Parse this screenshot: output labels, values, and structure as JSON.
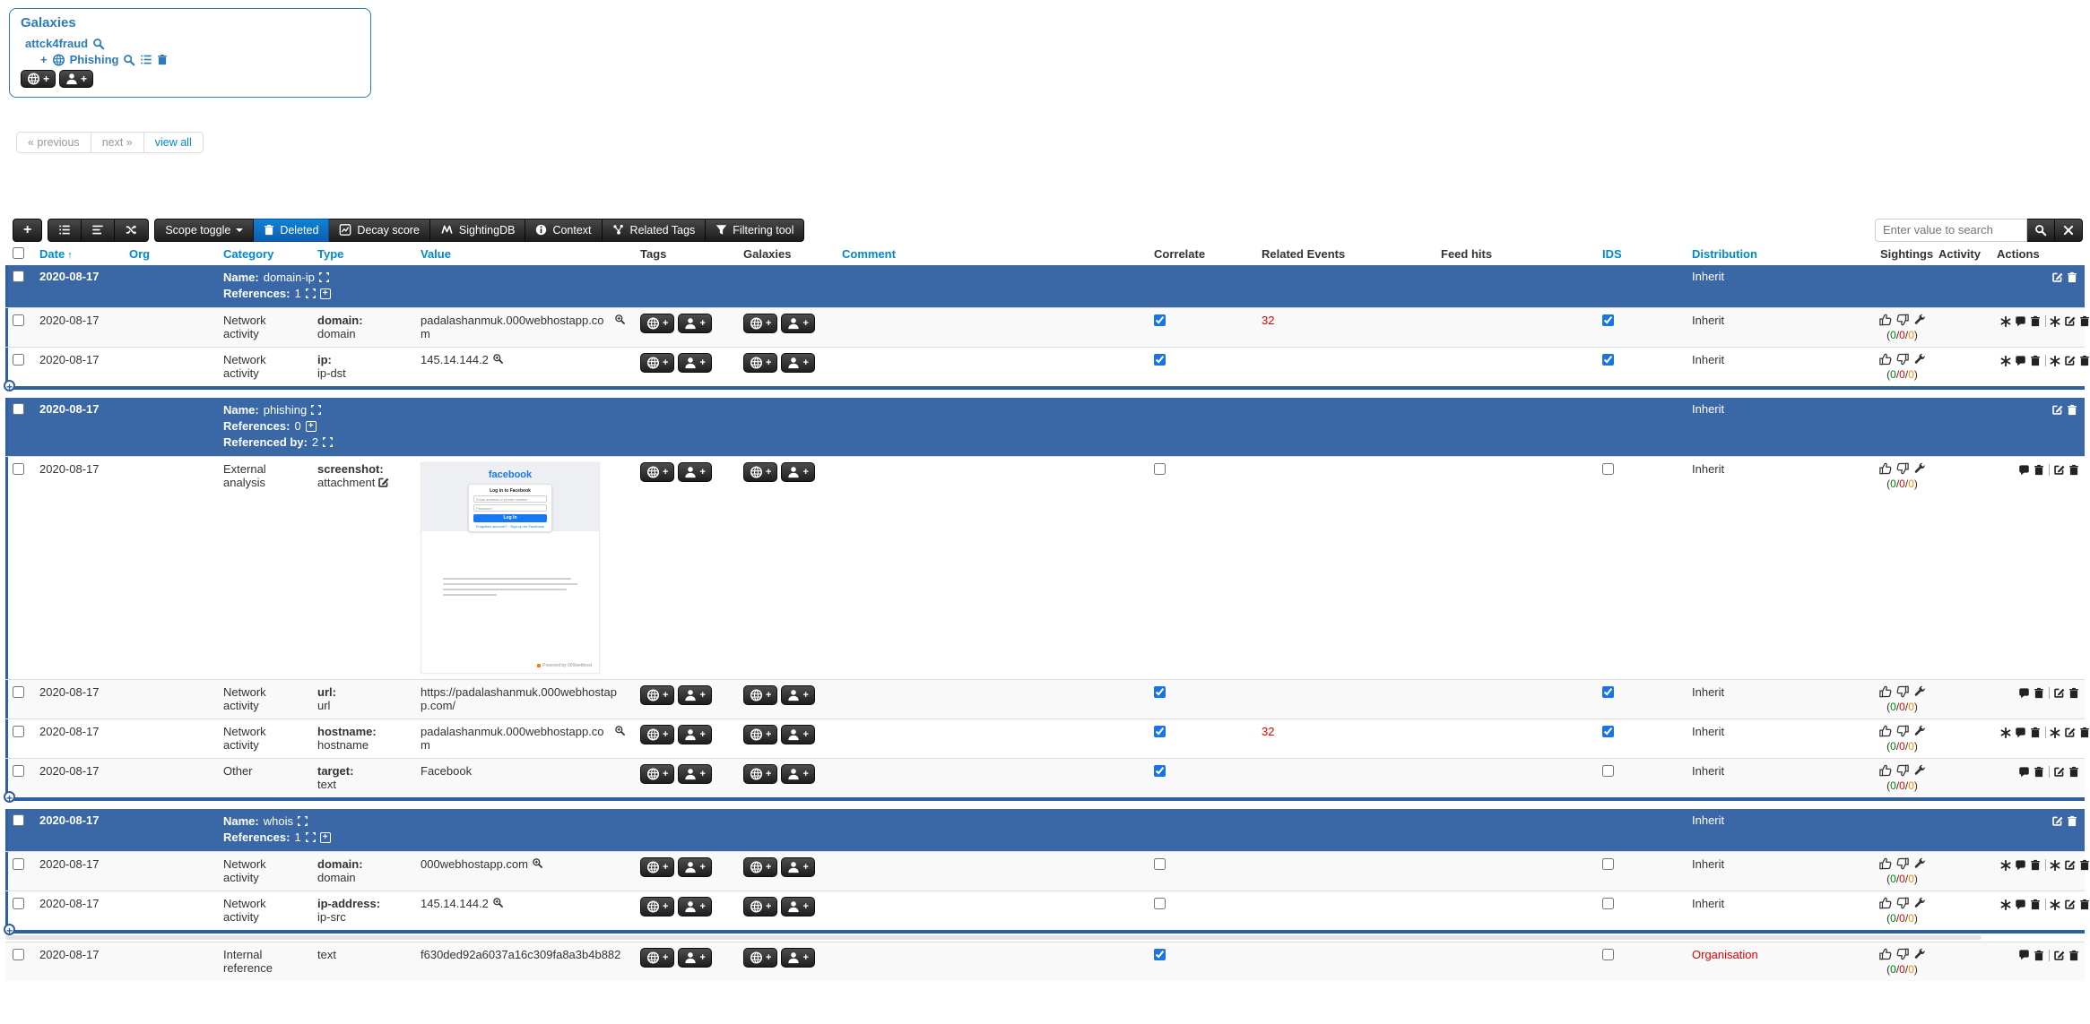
{
  "colors": {
    "accent_link": "#0088cc",
    "panel_blue": "#2b7bb9",
    "object_row_bg": "#3a67a5",
    "object_border": "#2f5f9c",
    "related_events_red": "#e60000",
    "distribution_warning_red": "#e60000",
    "sighting_green": "#008000",
    "sighting_red": "#e60000",
    "sighting_orange": "#ff8800"
  },
  "galaxies_panel": {
    "title": "Galaxies",
    "cluster": "attck4fraud",
    "item": "Phishing",
    "icons": [
      "search-icon",
      "plus-icon",
      "globe-icon",
      "search-icon",
      "list-icon",
      "trash-icon"
    ],
    "buttons": [
      {
        "icon": "globe-icon",
        "label": "+"
      },
      {
        "icon": "person-icon",
        "label": "+"
      }
    ]
  },
  "pagination": {
    "previous": "« previous",
    "next": "next »",
    "view_all": "view all"
  },
  "toolbar": {
    "icon_buttons": [
      "plus",
      "list",
      "align",
      "shuffle"
    ],
    "text_buttons": [
      {
        "label": "Scope toggle",
        "icon": "",
        "caret": true,
        "active": false
      },
      {
        "label": "Deleted",
        "icon": "trash",
        "caret": false,
        "active": true
      },
      {
        "label": "Decay score",
        "icon": "chart",
        "caret": false,
        "active": false
      },
      {
        "label": "SightingDB",
        "icon": "sighting",
        "caret": false,
        "active": false
      },
      {
        "label": "Context",
        "icon": "info",
        "caret": false,
        "active": false
      },
      {
        "label": "Related Tags",
        "icon": "network",
        "caret": false,
        "active": false
      },
      {
        "label": "Filtering tool",
        "icon": "funnel",
        "caret": false,
        "active": false
      }
    ],
    "search": {
      "placeholder": "Enter value to search"
    }
  },
  "table": {
    "columns": [
      {
        "label": "",
        "checkbox": true,
        "link": false,
        "sorted": false
      },
      {
        "label": "Date",
        "link": true,
        "sorted": true
      },
      {
        "label": "Org",
        "link": true,
        "sorted": false
      },
      {
        "label": "Category",
        "link": true,
        "sorted": false
      },
      {
        "label": "Type",
        "link": true,
        "sorted": false
      },
      {
        "label": "Value",
        "link": true,
        "sorted": false
      },
      {
        "label": "Tags",
        "link": false,
        "sorted": false
      },
      {
        "label": "Galaxies",
        "link": false,
        "sorted": false
      },
      {
        "label": "Comment",
        "link": true,
        "sorted": false
      },
      {
        "label": "Correlate",
        "link": false,
        "sorted": false
      },
      {
        "label": "Related Events",
        "link": false,
        "sorted": false
      },
      {
        "label": "Feed hits",
        "link": false,
        "sorted": false
      },
      {
        "label": "IDS",
        "link": true,
        "sorted": false
      },
      {
        "label": "Distribution",
        "link": true,
        "sorted": false
      },
      {
        "label": "Sightings",
        "link": false,
        "sorted": false
      },
      {
        "label": "Activity",
        "link": false,
        "sorted": false
      },
      {
        "label": "Actions",
        "link": false,
        "sorted": false
      }
    ],
    "sightings_counts": {
      "green": "0",
      "red": "0",
      "orange": "0"
    },
    "sections": [
      {
        "kind": "object",
        "header": {
          "date": "2020-08-17",
          "name_label": "Name:",
          "name": "domain-ip",
          "references_label": "References:",
          "references": "1",
          "references_expand": true,
          "references_add": true,
          "referenced_by_label": "",
          "referenced_by": "",
          "distribution": "Inherit"
        },
        "rows": [
          {
            "date": "2020-08-17",
            "org": "",
            "category": "Network activity",
            "type_main": "domain:",
            "type_sub": "domain",
            "type_sub_edit": false,
            "type_plain": false,
            "value": "padalashanmuk.000webhostapp.com",
            "value_zoom": true,
            "attachment": false,
            "comment": "",
            "correlate": true,
            "related_events": "32",
            "feed_hits": "",
            "ids": true,
            "distribution": "Inherit",
            "distribution_warning": false,
            "enrich_actions": true
          },
          {
            "date": "2020-08-17",
            "org": "",
            "category": "Network activity",
            "type_main": "ip:",
            "type_sub": "ip-dst",
            "type_sub_edit": false,
            "type_plain": false,
            "value": "145.14.144.2",
            "value_zoom": true,
            "attachment": false,
            "comment": "",
            "correlate": true,
            "related_events": "",
            "feed_hits": "",
            "ids": true,
            "distribution": "Inherit",
            "distribution_warning": false,
            "enrich_actions": true
          }
        ]
      },
      {
        "kind": "object",
        "header": {
          "date": "2020-08-17",
          "name_label": "Name:",
          "name": "phishing",
          "references_label": "References:",
          "references": "0",
          "references_expand": false,
          "references_add": true,
          "referenced_by_label": "Referenced by:",
          "referenced_by": "2",
          "distribution": "Inherit"
        },
        "rows": [
          {
            "date": "2020-08-17",
            "org": "",
            "category": "External analysis",
            "type_main": "screenshot:",
            "type_sub": "attachment",
            "type_sub_edit": true,
            "type_plain": false,
            "value": "",
            "value_zoom": false,
            "attachment": true,
            "comment": "",
            "correlate": false,
            "related_events": "",
            "feed_hits": "",
            "ids": false,
            "distribution": "Inherit",
            "distribution_warning": false,
            "enrich_actions": false
          },
          {
            "date": "2020-08-17",
            "org": "",
            "category": "Network activity",
            "type_main": "url:",
            "type_sub": "url",
            "type_sub_edit": false,
            "type_plain": false,
            "value": "https://padalashanmuk.000webhostapp.com/",
            "value_zoom": false,
            "attachment": false,
            "comment": "",
            "correlate": true,
            "related_events": "",
            "feed_hits": "",
            "ids": true,
            "distribution": "Inherit",
            "distribution_warning": false,
            "enrich_actions": false
          },
          {
            "date": "2020-08-17",
            "org": "",
            "category": "Network activity",
            "type_main": "hostname:",
            "type_sub": "hostname",
            "type_sub_edit": false,
            "type_plain": false,
            "value": "padalashanmuk.000webhostapp.com",
            "value_zoom": true,
            "attachment": false,
            "comment": "",
            "correlate": true,
            "related_events": "32",
            "feed_hits": "",
            "ids": true,
            "distribution": "Inherit",
            "distribution_warning": false,
            "enrich_actions": true
          },
          {
            "date": "2020-08-17",
            "org": "",
            "category": "Other",
            "type_main": "target:",
            "type_sub": "text",
            "type_sub_edit": false,
            "type_plain": false,
            "value": "Facebook",
            "value_zoom": false,
            "attachment": false,
            "comment": "",
            "correlate": true,
            "related_events": "",
            "feed_hits": "",
            "ids": false,
            "distribution": "Inherit",
            "distribution_warning": false,
            "enrich_actions": false
          }
        ]
      },
      {
        "kind": "object",
        "header": {
          "date": "2020-08-17",
          "name_label": "Name:",
          "name": "whois",
          "references_label": "References:",
          "references": "1",
          "references_expand": true,
          "references_add": true,
          "referenced_by_label": "",
          "referenced_by": "",
          "distribution": "Inherit"
        },
        "rows": [
          {
            "date": "2020-08-17",
            "org": "",
            "category": "Network activity",
            "type_main": "domain:",
            "type_sub": "domain",
            "type_sub_edit": false,
            "type_plain": false,
            "value": "000webhostapp.com",
            "value_zoom": true,
            "attachment": false,
            "comment": "",
            "correlate": false,
            "related_events": "",
            "feed_hits": "",
            "ids": false,
            "distribution": "Inherit",
            "distribution_warning": false,
            "enrich_actions": true
          },
          {
            "date": "2020-08-17",
            "org": "",
            "category": "Network activity",
            "type_main": "ip-address:",
            "type_sub": "ip-src",
            "type_sub_edit": false,
            "type_plain": false,
            "value": "145.14.144.2",
            "value_zoom": true,
            "attachment": false,
            "comment": "",
            "correlate": false,
            "related_events": "",
            "feed_hits": "",
            "ids": false,
            "distribution": "Inherit",
            "distribution_warning": false,
            "enrich_actions": true
          }
        ]
      },
      {
        "kind": "plain",
        "rows": [
          {
            "date": "2020-08-17",
            "org": "",
            "category": "Internal reference",
            "type_main": "text",
            "type_sub": "",
            "type_sub_edit": false,
            "type_plain": true,
            "value": "f630ded92a6037a16c309fa8a3b4b882",
            "value_zoom": false,
            "attachment": false,
            "comment": "",
            "correlate": true,
            "related_events": "",
            "feed_hits": "",
            "ids": false,
            "distribution": "Organisation",
            "distribution_warning": true,
            "enrich_actions": false
          }
        ]
      }
    ]
  },
  "attachment_preview": {
    "brand": "facebook",
    "card_title": "Log in to Facebook",
    "email_placeholder": "Email address or phone number",
    "password_placeholder": "Password",
    "button": "Log In",
    "links": "Forgotten account? · Sign up for Facebook",
    "footer": "Powered by 000webhost"
  }
}
